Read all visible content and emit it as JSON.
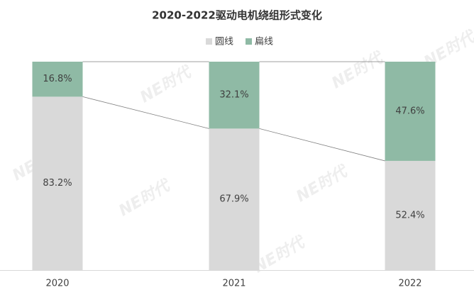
{
  "chart_data": {
    "type": "stacked_bar",
    "title": "2020-2022驱动电机绕组形式变化",
    "categories": [
      "2020",
      "2021",
      "2022"
    ],
    "series": [
      {
        "name": "圆线",
        "color": "#d9d9d9",
        "values": [
          83.2,
          67.9,
          52.4
        ],
        "value_labels": [
          "83.2%",
          "67.9%",
          "52.4%"
        ]
      },
      {
        "name": "扁线",
        "color": "#8fbaa5",
        "values": [
          16.8,
          32.1,
          47.6
        ],
        "value_labels": [
          "16.8%",
          "32.1%",
          "47.6%"
        ]
      }
    ],
    "ylim": [
      0,
      100
    ],
    "legend": "top",
    "watermark": "NE时代"
  }
}
